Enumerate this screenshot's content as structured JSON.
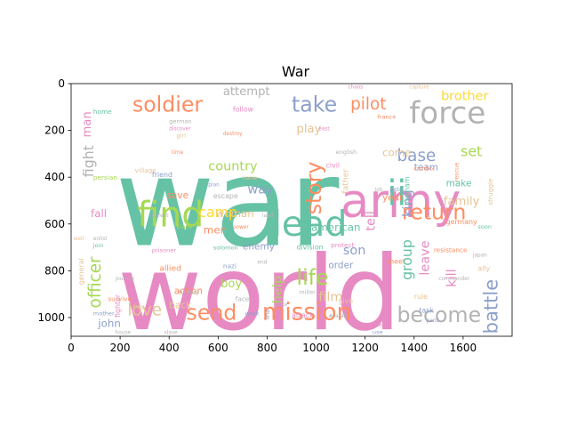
{
  "chart_data": {
    "type": "wordcloud",
    "title": "War",
    "xlabel": "",
    "ylabel": "",
    "xlim": [
      0,
      1800
    ],
    "ylim": [
      1080,
      0
    ],
    "xticks": [
      0,
      200,
      400,
      600,
      800,
      1000,
      1200,
      1400,
      1600
    ],
    "yticks": [
      0,
      200,
      400,
      600,
      800,
      1000
    ],
    "grid": false,
    "colors": [
      "#66c2a5",
      "#e78ac3",
      "#a6d854",
      "#fc8d62",
      "#8da0cb",
      "#e5c494",
      "#ffd92f",
      "#b3b3b3"
    ],
    "words": [
      {
        "text": "war",
        "x": 180,
        "y": 690,
        "size": 520,
        "color": "#66c2a5"
      },
      {
        "text": "world",
        "x": 190,
        "y": 1050,
        "size": 440,
        "color": "#e78ac3"
      },
      {
        "text": "army",
        "x": 1100,
        "y": 570,
        "size": 200,
        "color": "#e78ac3"
      },
      {
        "text": "find",
        "x": 270,
        "y": 610,
        "size": 150,
        "color": "#a6d854"
      },
      {
        "text": "lead",
        "x": 820,
        "y": 650,
        "size": 150,
        "color": "#66c2a5"
      },
      {
        "text": "force",
        "x": 1380,
        "y": 170,
        "size": 130,
        "color": "#b3b3b3"
      },
      {
        "text": "ii",
        "x": 1290,
        "y": 520,
        "size": 150,
        "color": "#66c2a5"
      },
      {
        "text": "mission",
        "x": 780,
        "y": 1010,
        "size": 100,
        "color": "#fc8d62"
      },
      {
        "text": "soldier",
        "x": 250,
        "y": 120,
        "size": 90,
        "color": "#fc8d62"
      },
      {
        "text": "take",
        "x": 900,
        "y": 120,
        "size": 90,
        "color": "#8da0cb"
      },
      {
        "text": "send",
        "x": 470,
        "y": 1010,
        "size": 90,
        "color": "#fc8d62"
      },
      {
        "text": "become",
        "x": 1330,
        "y": 1020,
        "size": 90,
        "color": "#b3b3b3"
      },
      {
        "text": "life",
        "x": 920,
        "y": 860,
        "size": 90,
        "color": "#a6d854"
      },
      {
        "text": "love",
        "x": 230,
        "y": 990,
        "size": 70,
        "color": "#e5c494"
      },
      {
        "text": "return",
        "x": 1350,
        "y": 580,
        "size": 90,
        "color": "#fc8d62"
      },
      {
        "text": "base",
        "x": 1330,
        "y": 330,
        "size": 70,
        "color": "#8da0cb"
      },
      {
        "text": "pilot",
        "x": 1140,
        "y": 110,
        "size": 70,
        "color": "#fc8d62"
      },
      {
        "text": "brother",
        "x": 1510,
        "y": 70,
        "size": 55,
        "color": "#ffd92f"
      },
      {
        "text": "camp",
        "x": 520,
        "y": 570,
        "size": 60,
        "color": "#ffd92f"
      },
      {
        "text": "country",
        "x": 560,
        "y": 370,
        "size": 55,
        "color": "#a6d854"
      },
      {
        "text": "attempt",
        "x": 620,
        "y": 50,
        "size": 50,
        "color": "#b3b3b3"
      },
      {
        "text": "american",
        "x": 980,
        "y": 630,
        "size": 45,
        "color": "#66c2a5"
      },
      {
        "text": "family",
        "x": 1520,
        "y": 520,
        "size": 50,
        "color": "#e5c494"
      },
      {
        "text": "set",
        "x": 1590,
        "y": 310,
        "size": 60,
        "color": "#a6d854"
      },
      {
        "text": "play",
        "x": 920,
        "y": 210,
        "size": 50,
        "color": "#e5c494"
      },
      {
        "text": "come",
        "x": 1270,
        "y": 310,
        "size": 45,
        "color": "#e5c494"
      },
      {
        "text": "son",
        "x": 1110,
        "y": 730,
        "size": 55,
        "color": "#8da0cb"
      },
      {
        "text": "order",
        "x": 1050,
        "y": 790,
        "size": 40,
        "color": "#8da0cb"
      },
      {
        "text": "boy",
        "x": 610,
        "y": 870,
        "size": 50,
        "color": "#a6d854"
      },
      {
        "text": "men",
        "x": 540,
        "y": 640,
        "size": 45,
        "color": "#fc8d62"
      },
      {
        "text": "way",
        "x": 720,
        "y": 470,
        "size": 55,
        "color": "#8da0cb"
      },
      {
        "text": "woman",
        "x": 590,
        "y": 570,
        "size": 45,
        "color": "#e5c494"
      },
      {
        "text": "save",
        "x": 390,
        "y": 490,
        "size": 40,
        "color": "#fc8d62"
      },
      {
        "text": "fall",
        "x": 80,
        "y": 570,
        "size": 45,
        "color": "#e78ac3"
      },
      {
        "text": "make",
        "x": 1530,
        "y": 440,
        "size": 40,
        "color": "#66c2a5"
      },
      {
        "text": "team",
        "x": 1400,
        "y": 370,
        "size": 40,
        "color": "#8da0cb"
      },
      {
        "text": "year",
        "x": 1270,
        "y": 500,
        "size": 40,
        "color": "#fc8d62"
      },
      {
        "text": "john",
        "x": 110,
        "y": 1040,
        "size": 45,
        "color": "#8da0cb"
      },
      {
        "text": "back",
        "x": 400,
        "y": 960,
        "size": 40,
        "color": "#e5c494"
      },
      {
        "text": "action",
        "x": 420,
        "y": 900,
        "size": 40,
        "color": "#fc8d62"
      },
      {
        "text": "enemy",
        "x": 700,
        "y": 710,
        "size": 40,
        "color": "#8da0cb"
      },
      {
        "text": "film",
        "x": 1010,
        "y": 930,
        "size": 55,
        "color": "#e5c494"
      },
      {
        "text": "germany",
        "x": 1530,
        "y": 600,
        "size": 30,
        "color": "#fc8d62"
      },
      {
        "text": "soon",
        "x": 1660,
        "y": 620,
        "size": 25,
        "color": "#66c2a5"
      },
      {
        "text": "resistance",
        "x": 1480,
        "y": 720,
        "size": 28,
        "color": "#fc8d62"
      },
      {
        "text": "division",
        "x": 920,
        "y": 710,
        "size": 30,
        "color": "#66c2a5"
      },
      {
        "text": "protect",
        "x": 1060,
        "y": 700,
        "size": 28,
        "color": "#e78ac3"
      },
      {
        "text": "history",
        "x": 440,
        "y": 900,
        "size": 25,
        "color": "#b3b3b3"
      },
      {
        "text": "place",
        "x": 430,
        "y": 620,
        "size": 25,
        "color": "#a6d854"
      },
      {
        "text": "escape",
        "x": 580,
        "y": 490,
        "size": 30,
        "color": "#b3b3b3"
      },
      {
        "text": "follow",
        "x": 660,
        "y": 120,
        "size": 30,
        "color": "#e78ac3"
      },
      {
        "text": "power",
        "x": 660,
        "y": 620,
        "size": 22,
        "color": "#fc8d62"
      },
      {
        "text": "solomon",
        "x": 580,
        "y": 710,
        "size": 25,
        "color": "#66c2a5"
      },
      {
        "text": "nazi",
        "x": 620,
        "y": 790,
        "size": 28,
        "color": "#8da0cb"
      },
      {
        "text": "face",
        "x": 670,
        "y": 930,
        "size": 28,
        "color": "#b3b3b3"
      },
      {
        "text": "allied",
        "x": 360,
        "y": 800,
        "size": 35,
        "color": "#fc8d62"
      },
      {
        "text": "prisoner",
        "x": 330,
        "y": 720,
        "size": 25,
        "color": "#e78ac3"
      },
      {
        "text": "survive",
        "x": 150,
        "y": 930,
        "size": 28,
        "color": "#fc8d62"
      },
      {
        "text": "duty",
        "x": 250,
        "y": 960,
        "size": 22,
        "color": "#e5c494"
      },
      {
        "text": "mother",
        "x": 90,
        "y": 990,
        "size": 25,
        "color": "#8da0cb"
      },
      {
        "text": "join",
        "x": 90,
        "y": 700,
        "size": 25,
        "color": "#66c2a5"
      },
      {
        "text": "persian",
        "x": 90,
        "y": 410,
        "size": 28,
        "color": "#a6d854"
      },
      {
        "text": "home",
        "x": 90,
        "y": 130,
        "size": 28,
        "color": "#66c2a5"
      },
      {
        "text": "time",
        "x": 410,
        "y": 300,
        "size": 22,
        "color": "#fc8d62"
      },
      {
        "text": "girl",
        "x": 430,
        "y": 230,
        "size": 25,
        "color": "#e5c494"
      },
      {
        "text": "german",
        "x": 400,
        "y": 170,
        "size": 25,
        "color": "#b3b3b3"
      },
      {
        "text": "plan",
        "x": 560,
        "y": 440,
        "size": 22,
        "color": "#8da0cb"
      },
      {
        "text": "name",
        "x": 700,
        "y": 410,
        "size": 22,
        "color": "#e5c494"
      },
      {
        "text": "state",
        "x": 830,
        "y": 950,
        "size": 22,
        "color": "#b3b3b3"
      },
      {
        "text": "attack",
        "x": 900,
        "y": 1000,
        "size": 30,
        "color": "#e78ac3"
      },
      {
        "text": "work",
        "x": 710,
        "y": 990,
        "size": 25,
        "color": "#8da0cb"
      },
      {
        "text": "give",
        "x": 1090,
        "y": 940,
        "size": 30,
        "color": "#e5c494"
      },
      {
        "text": "miller",
        "x": 930,
        "y": 900,
        "size": 25,
        "color": "#b3b3b3"
      },
      {
        "text": "task",
        "x": 1420,
        "y": 980,
        "size": 30,
        "color": "#8da0cb"
      },
      {
        "text": "rule",
        "x": 1400,
        "y": 920,
        "size": 30,
        "color": "#e5c494"
      },
      {
        "text": "begin",
        "x": 1240,
        "y": 1040,
        "size": 25,
        "color": "#e78ac3"
      },
      {
        "text": "use",
        "x": 1230,
        "y": 1070,
        "size": 25,
        "color": "#8da0cb"
      },
      {
        "text": "commander",
        "x": 1500,
        "y": 840,
        "size": 22,
        "color": "#b3b3b3"
      },
      {
        "text": "paris",
        "x": 1450,
        "y": 1020,
        "size": 22,
        "color": "#8da0cb"
      },
      {
        "text": "japan",
        "x": 1640,
        "y": 740,
        "size": 22,
        "color": "#b3b3b3"
      },
      {
        "text": "ally",
        "x": 1660,
        "y": 800,
        "size": 30,
        "color": "#e5c494"
      },
      {
        "text": "meet",
        "x": 1290,
        "y": 770,
        "size": 30,
        "color": "#fc8d62"
      },
      {
        "text": "pete",
        "x": 1300,
        "y": 460,
        "size": 25,
        "color": "#8da0cb"
      },
      {
        "text": "job",
        "x": 1240,
        "y": 460,
        "size": 22,
        "color": "#b3b3b3"
      },
      {
        "text": "rambo",
        "x": 1400,
        "y": 370,
        "size": 25,
        "color": "#fc8d62"
      },
      {
        "text": "france",
        "x": 1250,
        "y": 150,
        "size": 25,
        "color": "#fc8d62"
      },
      {
        "text": "english",
        "x": 1080,
        "y": 300,
        "size": 25,
        "color": "#b3b3b3"
      },
      {
        "text": "civil",
        "x": 1040,
        "y": 360,
        "size": 30,
        "color": "#e78ac3"
      },
      {
        "text": "east",
        "x": 1010,
        "y": 200,
        "size": 22,
        "color": "#e78ac3"
      },
      {
        "text": "capture",
        "x": 1380,
        "y": 20,
        "size": 22,
        "color": "#e5c494"
      },
      {
        "text": "chaos",
        "x": 1130,
        "y": 20,
        "size": 22,
        "color": "#e78ac3"
      },
      {
        "text": "village",
        "x": 260,
        "y": 380,
        "size": 28,
        "color": "#e5c494"
      },
      {
        "text": "friend",
        "x": 330,
        "y": 400,
        "size": 30,
        "color": "#8da0cb"
      },
      {
        "text": "discover",
        "x": 400,
        "y": 200,
        "size": 22,
        "color": "#e78ac3"
      },
      {
        "text": "defeat",
        "x": 330,
        "y": 570,
        "size": 22,
        "color": "#b3b3b3"
      },
      {
        "text": "journey",
        "x": 180,
        "y": 840,
        "size": 22,
        "color": "#b3b3b3"
      },
      {
        "text": "enlist",
        "x": 90,
        "y": 670,
        "size": 22,
        "color": "#b3b3b3"
      },
      {
        "text": "well",
        "x": 10,
        "y": 670,
        "size": 22,
        "color": "#e5c494"
      },
      {
        "text": "house",
        "x": 180,
        "y": 1070,
        "size": 22,
        "color": "#b3b3b3"
      },
      {
        "text": "slave",
        "x": 380,
        "y": 1070,
        "size": 22,
        "color": "#b3b3b3"
      },
      {
        "text": "destroy",
        "x": 620,
        "y": 220,
        "size": 22,
        "color": "#fc8d62"
      },
      {
        "text": "#sarah",
        "x": 1050,
        "y": 1000,
        "size": 22,
        "color": "#b3b3b3"
      },
      {
        "text": "end",
        "x": 760,
        "y": 770,
        "size": 22,
        "color": "#b3b3b3"
      },
      {
        "text": "land",
        "x": 780,
        "y": 570,
        "size": 22,
        "color": "#b3b3b3"
      },
      {
        "text": "fight",
        "x": 90,
        "y": 400,
        "size": 60,
        "color": "#b3b3b3",
        "rotate": true
      },
      {
        "text": "man",
        "x": 80,
        "y": 230,
        "size": 50,
        "color": "#e78ac3",
        "rotate": true
      },
      {
        "text": "officer",
        "x": 120,
        "y": 960,
        "size": 70,
        "color": "#a6d854",
        "rotate": true
      },
      {
        "text": "story",
        "x": 1020,
        "y": 560,
        "size": 90,
        "color": "#fc8d62",
        "rotate": true
      },
      {
        "text": "tell",
        "x": 1240,
        "y": 630,
        "size": 55,
        "color": "#e78ac3",
        "rotate": true
      },
      {
        "text": "group",
        "x": 1390,
        "y": 840,
        "size": 60,
        "color": "#66c2a5",
        "rotate": true
      },
      {
        "text": "leave",
        "x": 1460,
        "y": 820,
        "size": 55,
        "color": "#e78ac3",
        "rotate": true
      },
      {
        "text": "kill",
        "x": 1570,
        "y": 870,
        "size": 55,
        "color": "#e78ac3",
        "rotate": true
      },
      {
        "text": "battle",
        "x": 1740,
        "y": 1070,
        "size": 80,
        "color": "#8da0cb",
        "rotate": true
      },
      {
        "text": "help",
        "x": 860,
        "y": 940,
        "size": 55,
        "color": "#a6d854",
        "rotate": true
      },
      {
        "text": "king",
        "x": 1390,
        "y": 570,
        "size": 55,
        "color": "#8da0cb",
        "rotate": true
      },
      {
        "text": "fighter",
        "x": 200,
        "y": 1000,
        "size": 30,
        "color": "#e78ac3",
        "rotate": true
      },
      {
        "text": "father",
        "x": 1130,
        "y": 470,
        "size": 35,
        "color": "#e5c494",
        "rotate": true
      },
      {
        "text": "vietnam",
        "x": 1380,
        "y": 520,
        "size": 30,
        "color": "#66c2a5",
        "rotate": true
      },
      {
        "text": "rescue",
        "x": 1580,
        "y": 420,
        "size": 25,
        "color": "#fc8d62",
        "rotate": true
      },
      {
        "text": "struggle",
        "x": 1720,
        "y": 520,
        "size": 28,
        "color": "#e5c494",
        "rotate": true
      },
      {
        "text": "line",
        "x": 810,
        "y": 1010,
        "size": 25,
        "color": "#8da0cb",
        "rotate": true
      },
      {
        "text": "general",
        "x": 50,
        "y": 860,
        "size": 30,
        "color": "#e5c494",
        "rotate": true
      }
    ]
  }
}
